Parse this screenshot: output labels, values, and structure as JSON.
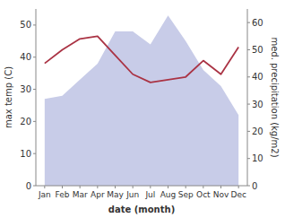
{
  "chart_data": {
    "type": "area",
    "categories": [
      "Jan",
      "Feb",
      "Mar",
      "Apr",
      "May",
      "Jun",
      "Jul",
      "Aug",
      "Sep",
      "Oct",
      "Nov",
      "Dec"
    ],
    "series": [
      {
        "type": "area",
        "color": "#c8cce8",
        "values": [
          27,
          28,
          33,
          38,
          48,
          48,
          44,
          53,
          45,
          36,
          31,
          22
        ]
      },
      {
        "type": "line",
        "color": "#aa3344",
        "axis": "y2",
        "values": [
          45,
          50,
          54,
          55,
          48,
          41,
          38,
          39,
          40,
          46,
          41,
          51
        ]
      }
    ],
    "xlabel": "date (month)",
    "ylabel": "max temp (C)",
    "y2label": "med. precipitation (kg/m2)",
    "ylim": [
      0,
      55
    ],
    "yticks": [
      0,
      10,
      20,
      30,
      40,
      50
    ],
    "y2lim": [
      0,
      65
    ],
    "y2ticks": [
      0,
      10,
      20,
      30,
      40,
      50,
      60
    ],
    "grid": false
  }
}
